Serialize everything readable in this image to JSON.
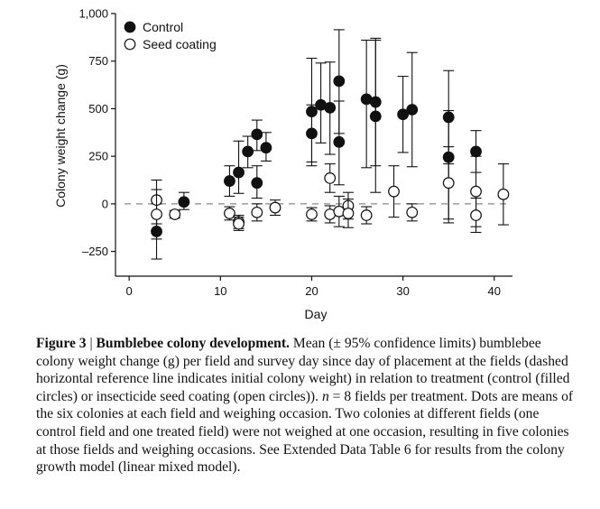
{
  "chart_data": {
    "type": "scatter",
    "title": "",
    "xlabel": "Day",
    "ylabel": "Colony weight change (g)",
    "xlim": [
      -1.5,
      42
    ],
    "ylim": [
      -380,
      1000
    ],
    "x_ticks": [
      0,
      10,
      20,
      30,
      40
    ],
    "x_tick_labels": [
      "0",
      "10",
      "20",
      "30",
      "40"
    ],
    "y_ticks": [
      -250,
      0,
      250,
      500,
      750,
      1000
    ],
    "y_tick_labels": [
      "–250",
      "0",
      "250",
      "500",
      "750",
      "1,000"
    ],
    "reference_line": 0,
    "legend_position": "top-left",
    "series": [
      {
        "name": "Control",
        "marker": "filled-circle",
        "points": [
          {
            "x": 3,
            "y": -145,
            "lo": -290,
            "hi": 0
          },
          {
            "x": 6,
            "y": 10,
            "lo": -30,
            "hi": 60
          },
          {
            "x": 11,
            "y": 120,
            "lo": 40,
            "hi": 200
          },
          {
            "x": 12,
            "y": 165,
            "lo": 55,
            "hi": 330
          },
          {
            "x": 13,
            "y": 275,
            "lo": 190,
            "hi": 355
          },
          {
            "x": 14,
            "y": 110,
            "lo": 30,
            "hi": 200
          },
          {
            "x": 14,
            "y": 365,
            "lo": 280,
            "hi": 440
          },
          {
            "x": 15,
            "y": 295,
            "lo": 225,
            "hi": 375
          },
          {
            "x": 20,
            "y": 370,
            "lo": 220,
            "hi": 520
          },
          {
            "x": 20,
            "y": 485,
            "lo": 200,
            "hi": 765
          },
          {
            "x": 21,
            "y": 520,
            "lo": 320,
            "hi": 740
          },
          {
            "x": 22,
            "y": 505,
            "lo": 260,
            "hi": 745
          },
          {
            "x": 23,
            "y": 325,
            "lo": 100,
            "hi": 540
          },
          {
            "x": 23,
            "y": 645,
            "lo": 370,
            "hi": 915
          },
          {
            "x": 26,
            "y": 550,
            "lo": 190,
            "hi": 860
          },
          {
            "x": 27,
            "y": 460,
            "lo": 60,
            "hi": 860
          },
          {
            "x": 27,
            "y": 535,
            "lo": 200,
            "hi": 870
          },
          {
            "x": 30,
            "y": 470,
            "lo": 270,
            "hi": 670
          },
          {
            "x": 31,
            "y": 495,
            "lo": 195,
            "hi": 795
          },
          {
            "x": 35,
            "y": 245,
            "lo": -100,
            "hi": 490
          },
          {
            "x": 35,
            "y": 455,
            "lo": 210,
            "hi": 700
          },
          {
            "x": 38,
            "y": 275,
            "lo": 165,
            "hi": 385
          }
        ]
      },
      {
        "name": "Seed coating",
        "marker": "open-circle",
        "points": [
          {
            "x": 3,
            "y": 20,
            "lo": -105,
            "hi": 125
          },
          {
            "x": 3,
            "y": -55,
            "lo": -185,
            "hi": 75
          },
          {
            "x": 5,
            "y": -55,
            "lo": -75,
            "hi": -35
          },
          {
            "x": 11,
            "y": -50,
            "lo": -85,
            "hi": -15
          },
          {
            "x": 12,
            "y": -95,
            "lo": -130,
            "hi": -60
          },
          {
            "x": 12,
            "y": -105,
            "lo": -140,
            "hi": -70
          },
          {
            "x": 14,
            "y": -45,
            "lo": -90,
            "hi": 0
          },
          {
            "x": 16,
            "y": -20,
            "lo": -60,
            "hi": 20
          },
          {
            "x": 20,
            "y": -55,
            "lo": -90,
            "hi": -20
          },
          {
            "x": 22,
            "y": -55,
            "lo": -100,
            "hi": -10
          },
          {
            "x": 22,
            "y": 135,
            "lo": 60,
            "hi": 210
          },
          {
            "x": 23,
            "y": -40,
            "lo": -120,
            "hi": 40
          },
          {
            "x": 24,
            "y": -10,
            "lo": -80,
            "hi": 60
          },
          {
            "x": 24,
            "y": -50,
            "lo": -125,
            "hi": 25
          },
          {
            "x": 26,
            "y": -60,
            "lo": -105,
            "hi": -15
          },
          {
            "x": 29,
            "y": 65,
            "lo": -70,
            "hi": 200
          },
          {
            "x": 31,
            "y": -45,
            "lo": -90,
            "hi": 0
          },
          {
            "x": 35,
            "y": 110,
            "lo": -80,
            "hi": 300
          },
          {
            "x": 38,
            "y": 65,
            "lo": -120,
            "hi": 250
          },
          {
            "x": 38,
            "y": -60,
            "lo": -150,
            "hi": 30
          },
          {
            "x": 41,
            "y": 50,
            "lo": -110,
            "hi": 210
          }
        ]
      }
    ]
  },
  "caption": {
    "label": "Figure 3",
    "separator": " | ",
    "title": "Bumblebee colony development.",
    "text_1": " Mean (± 95% confidence limits) bumblebee colony weight change (g) per field and survey day since day of placement at the fields (dashed horizontal reference line indicates initial colony weight) in relation to treatment (control (filled circles) or insecticide seed coating (open circles)). ",
    "n_symbol": "n",
    "text_2": " = 8 fields per treatment. Dots are means of the six colonies at each field and weighing occasion. Two colonies at different fields (one control field and one treated field) were not weighed at one occasion, resulting in five colonies at those fields and weighing occasions. See Extended Data Table 6 for results from the colony growth model (linear mixed model)."
  }
}
